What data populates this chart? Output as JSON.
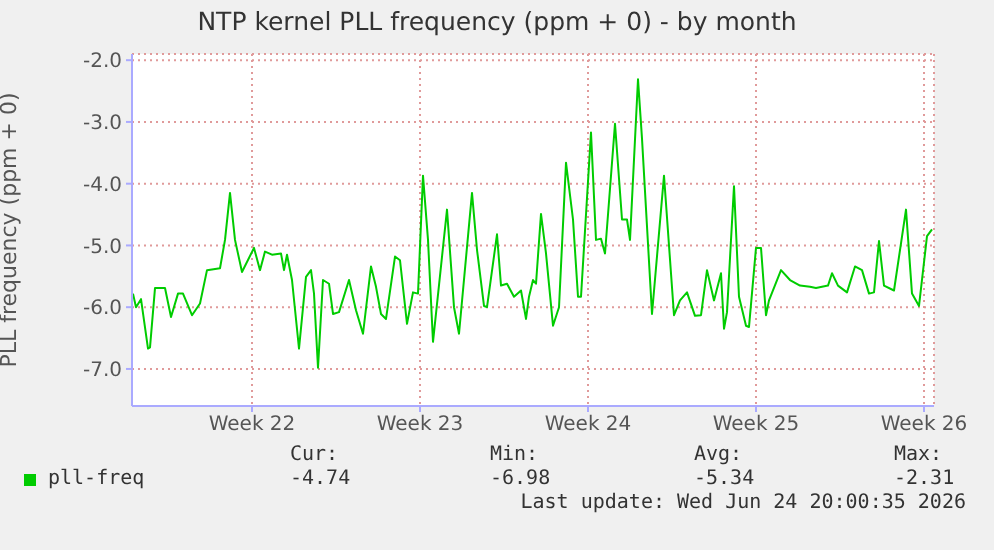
{
  "chart_data": {
    "type": "line",
    "title": "NTP kernel PLL frequency (ppm + 0) - by month",
    "ylabel": "PLL frequency (ppm + 0)",
    "x": [
      "2026-05-20T01:00",
      "2026-05-20T04:00",
      "2026-05-20T09:00",
      "2026-05-20T16:00",
      "2026-05-20T18:00",
      "2026-05-20T23:00",
      "2026-05-21T09:00",
      "2026-05-21T15:00",
      "2026-05-21T22:00",
      "2026-05-22T03:00",
      "2026-05-22T12:00",
      "2026-05-22T20:00",
      "2026-05-23T03:00",
      "2026-05-23T16:00",
      "2026-05-23T21:00",
      "2026-05-24T02:00",
      "2026-05-24T07:00",
      "2026-05-24T14:00",
      "2026-05-25T02:00",
      "2026-05-25T08:00",
      "2026-05-25T13:00",
      "2026-05-25T20:00",
      "2026-05-26T05:00",
      "2026-05-26T08:00",
      "2026-05-26T11:00",
      "2026-05-26T16:00",
      "2026-05-26T23:00",
      "2026-05-27T06:00",
      "2026-05-27T11:00",
      "2026-05-27T14:00",
      "2026-05-27T18:00",
      "2026-05-27T23:00",
      "2026-05-28T05:00",
      "2026-05-28T09:00",
      "2026-05-28T15:00",
      "2026-05-29T01:00",
      "2026-05-29T08:00",
      "2026-05-29T15:00",
      "2026-05-29T23:00",
      "2026-05-30T04:00",
      "2026-05-30T09:00",
      "2026-05-30T14:00",
      "2026-05-30T23:00",
      "2026-05-31T04:00",
      "2026-05-31T11:00",
      "2026-05-31T17:00",
      "2026-05-31T22:00",
      "2026-06-01T03:00",
      "2026-06-01T08:00",
      "2026-06-01T13:00",
      "2026-06-02T03:00",
      "2026-06-02T10:00",
      "2026-06-02T15:00",
      "2026-06-03T04:00",
      "2026-06-03T09:00",
      "2026-06-03T16:00",
      "2026-06-03T19:00",
      "2026-06-04T05:00",
      "2026-06-04T09:00",
      "2026-06-04T15:00",
      "2026-06-04T22:00",
      "2026-06-05T05:00",
      "2026-06-05T10:00",
      "2026-06-05T13:00",
      "2026-06-05T17:00",
      "2026-06-05T20:00",
      "2026-06-06T01:00",
      "2026-06-06T06:00",
      "2026-06-06T13:00",
      "2026-06-06T19:00",
      "2026-06-07T02:00",
      "2026-06-07T09:00",
      "2026-06-07T14:00",
      "2026-06-07T17:00",
      "2026-06-08T03:00",
      "2026-06-08T08:00",
      "2026-06-08T13:00",
      "2026-06-08T17:00",
      "2026-06-09T03:00",
      "2026-06-09T10:00",
      "2026-06-09T15:00",
      "2026-06-09T18:00",
      "2026-06-10T02:00",
      "2026-06-10T06:00",
      "2026-06-10T16:00",
      "2026-06-11T04:00",
      "2026-06-11T14:00",
      "2026-06-11T20:00",
      "2026-06-12T03:00",
      "2026-06-12T11:00",
      "2026-06-12T17:00",
      "2026-06-12T23:00",
      "2026-06-13T06:00",
      "2026-06-13T13:00",
      "2026-06-13T16:00",
      "2026-06-13T19:00",
      "2026-06-14T02:00",
      "2026-06-14T07:00",
      "2026-06-14T14:00",
      "2026-06-14T17:00",
      "2026-06-15T00:00",
      "2026-06-15T05:00",
      "2026-06-15T10:00",
      "2026-06-15T13:00",
      "2026-06-16T01:00",
      "2026-06-16T10:00",
      "2026-06-16T20:00",
      "2026-06-17T06:00",
      "2026-06-17T12:00",
      "2026-06-18T00:00",
      "2026-06-18T04:00",
      "2026-06-18T10:00",
      "2026-06-18T19:00",
      "2026-06-19T03:00",
      "2026-06-19T10:00",
      "2026-06-19T17:00",
      "2026-06-19T22:00",
      "2026-06-20T03:00",
      "2026-06-20T08:00",
      "2026-06-20T18:00",
      "2026-06-21T06:00",
      "2026-06-21T12:00",
      "2026-06-21T19:00",
      "2026-06-22T03:00",
      "2026-06-22T08:00"
    ],
    "series": [
      {
        "name": "pll-freq",
        "color": "#00cc00",
        "values": [
          -5.78,
          -6.0,
          -5.87,
          -6.67,
          -6.65,
          -5.69,
          -5.69,
          -6.16,
          -5.78,
          -5.78,
          -6.13,
          -5.94,
          -5.4,
          -5.37,
          -4.91,
          -4.15,
          -4.91,
          -5.43,
          -5.04,
          -5.4,
          -5.1,
          -5.15,
          -5.13,
          -5.4,
          -5.15,
          -5.56,
          -6.67,
          -5.51,
          -5.4,
          -5.78,
          -6.98,
          -5.56,
          -5.62,
          -6.11,
          -6.08,
          -5.56,
          -6.05,
          -6.43,
          -5.34,
          -5.67,
          -6.11,
          -6.19,
          -5.18,
          -5.24,
          -6.27,
          -5.76,
          -5.78,
          -3.87,
          -4.91,
          -6.56,
          -4.42,
          -6.0,
          -6.43,
          -4.15,
          -5.07,
          -5.98,
          -6.0,
          -4.82,
          -5.65,
          -5.62,
          -5.83,
          -5.73,
          -6.19,
          -5.83,
          -5.56,
          -5.62,
          -4.49,
          -5.13,
          -6.3,
          -6.0,
          -3.66,
          -4.58,
          -5.83,
          -5.83,
          -3.17,
          -4.91,
          -4.89,
          -5.13,
          -3.03,
          -4.58,
          -4.58,
          -4.91,
          -2.31,
          -3.27,
          -6.11,
          -3.87,
          -6.13,
          -5.89,
          -5.76,
          -6.14,
          -6.13,
          -5.4,
          -5.89,
          -5.45,
          -6.35,
          -6.08,
          -4.04,
          -5.83,
          -6.3,
          -6.32,
          -5.04,
          -5.04,
          -6.13,
          -5.89,
          -5.4,
          -5.56,
          -5.65,
          -5.67,
          -5.69,
          -5.65,
          -5.45,
          -5.65,
          -5.76,
          -5.34,
          -5.4,
          -5.78,
          -5.76,
          -4.93,
          -5.65,
          -5.73,
          -4.42,
          -5.78,
          -5.98,
          -4.85,
          -4.74
        ]
      }
    ],
    "xlim": [
      "2026-05-20T00:00",
      "2026-06-22T10:00"
    ],
    "xticks": [
      {
        "value": "2026-05-25",
        "label": "Week 22"
      },
      {
        "value": "2026-06-01",
        "label": "Week 23"
      },
      {
        "value": "2026-06-08",
        "label": "Week 24"
      },
      {
        "value": "2026-06-15",
        "label": "Week 25"
      },
      {
        "value": "2026-06-22",
        "label": "Week 26"
      }
    ],
    "ylim": [
      -7.6,
      -1.9
    ],
    "yticks": [
      {
        "value": -7,
        "label": "-7.0"
      },
      {
        "value": -6,
        "label": "-6.0"
      },
      {
        "value": -5,
        "label": "-5.0"
      },
      {
        "value": -4,
        "label": "-4.0"
      },
      {
        "value": -3,
        "label": "-3.0"
      },
      {
        "value": -2,
        "label": "-2.0"
      }
    ],
    "grid": true,
    "legend": "bottom",
    "marker": "none",
    "line_style": "solid",
    "annotations": [
      "Cur:",
      "Min:",
      "Avg:",
      "Max:",
      "-4.74",
      "-6.98",
      "-5.34",
      "-2.31",
      "Last update: Wed Jun 24 20:00:35 2026"
    ]
  }
}
